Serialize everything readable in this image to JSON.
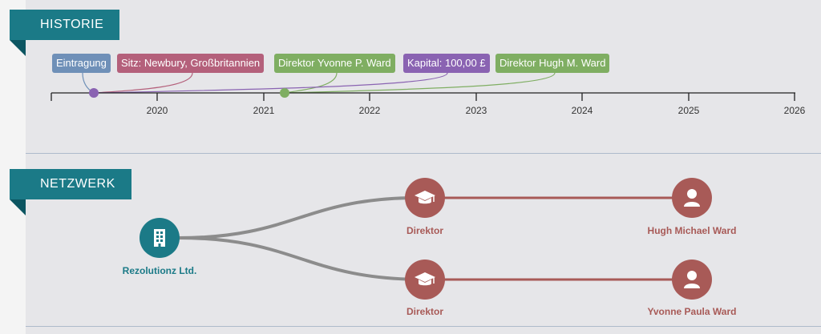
{
  "historie": {
    "title": "HISTORIE",
    "events": [
      {
        "label": "Eintragung",
        "color": "#6f90b8"
      },
      {
        "label": "Sitz: Newbury, Großbritannien",
        "color": "#b4607b"
      },
      {
        "label": "Direktor Yvonne P. Ward",
        "color": "#7fae62"
      },
      {
        "label": "Kapital: 100,00 £",
        "color": "#8a63b2"
      },
      {
        "label": "Direktor Hugh M. Ward",
        "color": "#7fae62"
      }
    ],
    "years": [
      "2020",
      "2021",
      "2022",
      "2023",
      "2024",
      "2025",
      "2026"
    ]
  },
  "netzwerk": {
    "title": "NETZWERK",
    "company": {
      "label": "Rezolutionz Ltd.",
      "color": "#1b7a87",
      "icon": "building-icon"
    },
    "roles": [
      {
        "label": "Direktor",
        "icon": "graduation-cap-icon",
        "color": "#a85a57"
      },
      {
        "label": "Direktor",
        "icon": "graduation-cap-icon",
        "color": "#a85a57"
      }
    ],
    "persons": [
      {
        "label": "Hugh Michael Ward",
        "icon": "person-icon",
        "color": "#a85a57"
      },
      {
        "label": "Yvonne Paula Ward",
        "icon": "person-icon",
        "color": "#a85a57"
      }
    ]
  }
}
